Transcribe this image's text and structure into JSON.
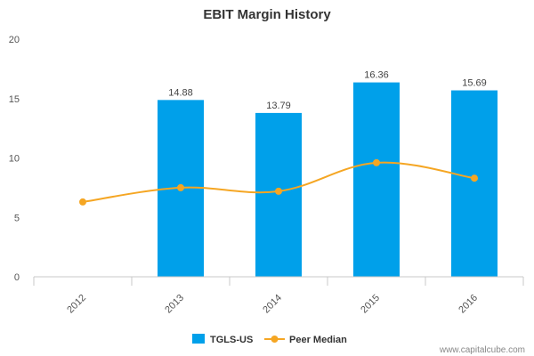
{
  "chart_data": {
    "type": "bar",
    "title": "EBIT Margin History",
    "categories": [
      "2012",
      "2013",
      "2014",
      "2015",
      "2016"
    ],
    "ylim": [
      0,
      20
    ],
    "yticks": [
      0,
      5,
      10,
      15,
      20
    ],
    "xlabel": "",
    "ylabel": "",
    "grid": false,
    "legend_position": "bottom",
    "series": [
      {
        "name": "TGLS-US",
        "type": "bar",
        "color": "#00a0ea",
        "values": [
          null,
          14.88,
          13.79,
          16.36,
          15.69
        ],
        "labels": [
          "",
          "14.88",
          "13.79",
          "16.36",
          "15.69"
        ]
      },
      {
        "name": "Peer Median",
        "type": "line",
        "color": "#f5a623",
        "values": [
          6.3,
          7.5,
          7.2,
          9.6,
          8.3
        ]
      }
    ]
  },
  "credit": "www.capitalcube.com"
}
